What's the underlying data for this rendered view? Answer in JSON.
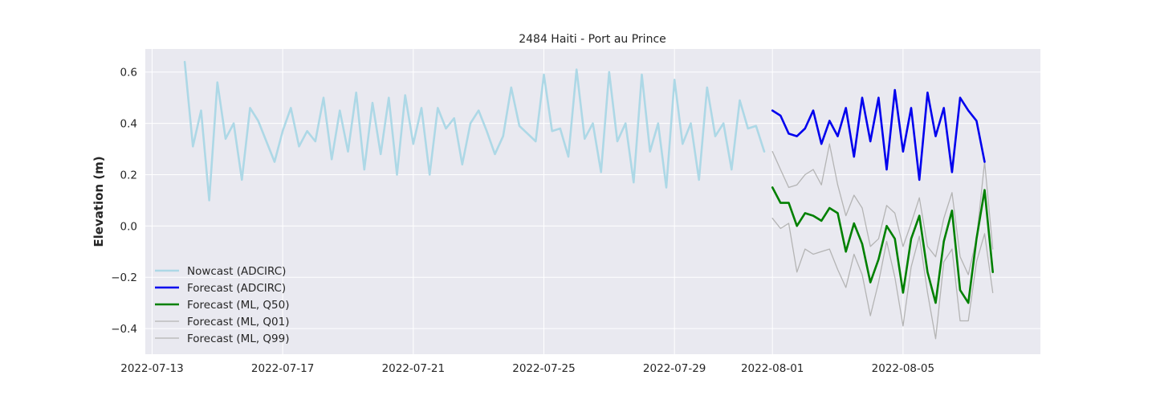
{
  "chart_data": {
    "type": "line",
    "title": "2484 Haiti - Port au Prince",
    "xlabel": "",
    "ylabel": "Elevation (m)",
    "x_type": "date",
    "xlim": [
      "2022-07-12T19:00",
      "2022-08-09T05:00"
    ],
    "ylim": [
      -0.5,
      0.69
    ],
    "xticks": [
      {
        "value": "2022-07-13",
        "label": "2022-07-13"
      },
      {
        "value": "2022-07-17",
        "label": "2022-07-17"
      },
      {
        "value": "2022-07-21",
        "label": "2022-07-21"
      },
      {
        "value": "2022-07-25",
        "label": "2022-07-25"
      },
      {
        "value": "2022-07-29",
        "label": "2022-07-29"
      },
      {
        "value": "2022-08-01",
        "label": "2022-08-01"
      },
      {
        "value": "2022-08-05",
        "label": "2022-08-05"
      }
    ],
    "yticks": [
      {
        "value": 0.6,
        "label": "0.6"
      },
      {
        "value": 0.4,
        "label": "0.4"
      },
      {
        "value": 0.2,
        "label": "0.2"
      },
      {
        "value": 0.0,
        "label": "0.0"
      },
      {
        "value": -0.2,
        "label": "−0.2"
      },
      {
        "value": -0.4,
        "label": "−0.4"
      }
    ],
    "grid": true,
    "legend_position": "lower-left",
    "background": "#e9e9f0",
    "series": [
      {
        "name": "Nowcast (ADCIRC)",
        "color": "#add8e6",
        "width": 2.6,
        "x": [
          "2022-07-14T00:00",
          "2022-07-14T06:00",
          "2022-07-14T12:00",
          "2022-07-14T18:00",
          "2022-07-15T00:00",
          "2022-07-15T06:00",
          "2022-07-15T12:00",
          "2022-07-15T18:00",
          "2022-07-16T00:00",
          "2022-07-16T06:00",
          "2022-07-16T12:00",
          "2022-07-16T18:00",
          "2022-07-17T00:00",
          "2022-07-17T06:00",
          "2022-07-17T12:00",
          "2022-07-17T18:00",
          "2022-07-18T00:00",
          "2022-07-18T06:00",
          "2022-07-18T12:00",
          "2022-07-18T18:00",
          "2022-07-19T00:00",
          "2022-07-19T06:00",
          "2022-07-19T12:00",
          "2022-07-19T18:00",
          "2022-07-20T00:00",
          "2022-07-20T06:00",
          "2022-07-20T12:00",
          "2022-07-20T18:00",
          "2022-07-21T00:00",
          "2022-07-21T06:00",
          "2022-07-21T12:00",
          "2022-07-21T18:00",
          "2022-07-22T00:00",
          "2022-07-22T06:00",
          "2022-07-22T12:00",
          "2022-07-22T18:00",
          "2022-07-23T00:00",
          "2022-07-23T06:00",
          "2022-07-23T12:00",
          "2022-07-23T18:00",
          "2022-07-24T00:00",
          "2022-07-24T06:00",
          "2022-07-24T12:00",
          "2022-07-24T18:00",
          "2022-07-25T00:00",
          "2022-07-25T06:00",
          "2022-07-25T12:00",
          "2022-07-25T18:00",
          "2022-07-26T00:00",
          "2022-07-26T06:00",
          "2022-07-26T12:00",
          "2022-07-26T18:00",
          "2022-07-27T00:00",
          "2022-07-27T06:00",
          "2022-07-27T12:00",
          "2022-07-27T18:00",
          "2022-07-28T00:00",
          "2022-07-28T06:00",
          "2022-07-28T12:00",
          "2022-07-28T18:00",
          "2022-07-29T00:00",
          "2022-07-29T06:00",
          "2022-07-29T12:00",
          "2022-07-29T18:00",
          "2022-07-30T00:00",
          "2022-07-30T06:00",
          "2022-07-30T12:00",
          "2022-07-30T18:00",
          "2022-07-31T00:00",
          "2022-07-31T06:00",
          "2022-07-31T12:00",
          "2022-07-31T18:00"
        ],
        "y": [
          0.64,
          0.31,
          0.45,
          0.1,
          0.56,
          0.34,
          0.4,
          0.18,
          0.46,
          0.41,
          0.33,
          0.25,
          0.37,
          0.46,
          0.31,
          0.37,
          0.33,
          0.5,
          0.26,
          0.45,
          0.29,
          0.52,
          0.22,
          0.48,
          0.28,
          0.5,
          0.2,
          0.51,
          0.32,
          0.46,
          0.2,
          0.46,
          0.38,
          0.42,
          0.24,
          0.4,
          0.45,
          0.37,
          0.28,
          0.35,
          0.54,
          0.39,
          0.36,
          0.33,
          0.59,
          0.37,
          0.38,
          0.27,
          0.61,
          0.34,
          0.4,
          0.21,
          0.6,
          0.33,
          0.4,
          0.17,
          0.59,
          0.29,
          0.4,
          0.15,
          0.57,
          0.32,
          0.4,
          0.18,
          0.54,
          0.35,
          0.4,
          0.22,
          0.49,
          0.38,
          0.39,
          0.29
        ]
      },
      {
        "name": "Forecast (ADCIRC)",
        "color": "#0000ee",
        "width": 2.6,
        "x": [
          "2022-08-01T00:00",
          "2022-08-01T06:00",
          "2022-08-01T12:00",
          "2022-08-01T18:00",
          "2022-08-02T00:00",
          "2022-08-02T06:00",
          "2022-08-02T12:00",
          "2022-08-02T18:00",
          "2022-08-03T00:00",
          "2022-08-03T06:00",
          "2022-08-03T12:00",
          "2022-08-03T18:00",
          "2022-08-04T00:00",
          "2022-08-04T06:00",
          "2022-08-04T12:00",
          "2022-08-04T18:00",
          "2022-08-05T00:00",
          "2022-08-05T06:00",
          "2022-08-05T12:00",
          "2022-08-05T18:00",
          "2022-08-06T00:00",
          "2022-08-06T06:00",
          "2022-08-06T12:00",
          "2022-08-06T18:00",
          "2022-08-07T00:00",
          "2022-08-07T06:00",
          "2022-08-07T12:00",
          "2022-08-07T18:00"
        ],
        "y": [
          0.45,
          0.43,
          0.36,
          0.35,
          0.38,
          0.45,
          0.32,
          0.41,
          0.35,
          0.46,
          0.27,
          0.5,
          0.33,
          0.5,
          0.22,
          0.53,
          0.29,
          0.46,
          0.18,
          0.52,
          0.35,
          0.46,
          0.21,
          0.5,
          0.45,
          0.41,
          0.25,
          null
        ]
      },
      {
        "name": "Forecast (ML, Q50)",
        "color": "#008000",
        "width": 2.6,
        "x": [
          "2022-08-01T00:00",
          "2022-08-01T06:00",
          "2022-08-01T12:00",
          "2022-08-01T18:00",
          "2022-08-02T00:00",
          "2022-08-02T06:00",
          "2022-08-02T12:00",
          "2022-08-02T18:00",
          "2022-08-03T00:00",
          "2022-08-03T06:00",
          "2022-08-03T12:00",
          "2022-08-03T18:00",
          "2022-08-04T00:00",
          "2022-08-04T06:00",
          "2022-08-04T12:00",
          "2022-08-04T18:00",
          "2022-08-05T00:00",
          "2022-08-05T06:00",
          "2022-08-05T12:00",
          "2022-08-05T18:00",
          "2022-08-06T00:00",
          "2022-08-06T06:00",
          "2022-08-06T12:00",
          "2022-08-06T18:00",
          "2022-08-07T00:00",
          "2022-08-07T06:00",
          "2022-08-07T12:00",
          "2022-08-07T18:00"
        ],
        "y": [
          0.15,
          0.09,
          0.09,
          0.0,
          0.05,
          0.04,
          0.02,
          0.07,
          0.05,
          -0.1,
          0.01,
          -0.07,
          -0.22,
          -0.13,
          0.0,
          -0.05,
          -0.26,
          -0.05,
          0.04,
          -0.18,
          -0.3,
          -0.06,
          0.06,
          -0.25,
          -0.3,
          -0.05,
          0.14,
          -0.18
        ]
      },
      {
        "name": "Forecast (ML, Q01)",
        "color": "#b4b4b4",
        "width": 1.3,
        "x": [
          "2022-08-01T00:00",
          "2022-08-01T06:00",
          "2022-08-01T12:00",
          "2022-08-01T18:00",
          "2022-08-02T00:00",
          "2022-08-02T06:00",
          "2022-08-02T12:00",
          "2022-08-02T18:00",
          "2022-08-03T00:00",
          "2022-08-03T06:00",
          "2022-08-03T12:00",
          "2022-08-03T18:00",
          "2022-08-04T00:00",
          "2022-08-04T06:00",
          "2022-08-04T12:00",
          "2022-08-04T18:00",
          "2022-08-05T00:00",
          "2022-08-05T06:00",
          "2022-08-05T12:00",
          "2022-08-05T18:00",
          "2022-08-06T00:00",
          "2022-08-06T06:00",
          "2022-08-06T12:00",
          "2022-08-06T18:00",
          "2022-08-07T00:00",
          "2022-08-07T06:00",
          "2022-08-07T12:00",
          "2022-08-07T18:00"
        ],
        "y": [
          0.03,
          -0.01,
          0.01,
          -0.18,
          -0.09,
          -0.11,
          -0.1,
          -0.09,
          -0.17,
          -0.24,
          -0.11,
          -0.19,
          -0.35,
          -0.22,
          -0.06,
          -0.2,
          -0.39,
          -0.16,
          -0.04,
          -0.26,
          -0.44,
          -0.14,
          -0.09,
          -0.37,
          -0.37,
          -0.14,
          -0.03,
          -0.26
        ]
      },
      {
        "name": "Forecast (ML, Q99)",
        "color": "#b4b4b4",
        "width": 1.3,
        "x": [
          "2022-08-01T00:00",
          "2022-08-01T06:00",
          "2022-08-01T12:00",
          "2022-08-01T18:00",
          "2022-08-02T00:00",
          "2022-08-02T06:00",
          "2022-08-02T12:00",
          "2022-08-02T18:00",
          "2022-08-03T00:00",
          "2022-08-03T06:00",
          "2022-08-03T12:00",
          "2022-08-03T18:00",
          "2022-08-04T00:00",
          "2022-08-04T06:00",
          "2022-08-04T12:00",
          "2022-08-04T18:00",
          "2022-08-05T00:00",
          "2022-08-05T06:00",
          "2022-08-05T12:00",
          "2022-08-05T18:00",
          "2022-08-06T00:00",
          "2022-08-06T06:00",
          "2022-08-06T12:00",
          "2022-08-06T18:00",
          "2022-08-07T00:00",
          "2022-08-07T06:00",
          "2022-08-07T12:00",
          "2022-08-07T18:00"
        ],
        "y": [
          0.29,
          0.22,
          0.15,
          0.16,
          0.2,
          0.22,
          0.16,
          0.32,
          0.16,
          0.04,
          0.12,
          0.07,
          -0.08,
          -0.05,
          0.08,
          0.05,
          -0.08,
          0.01,
          0.11,
          -0.08,
          -0.12,
          0.03,
          0.13,
          -0.12,
          -0.19,
          -0.05,
          0.25,
          -0.09
        ]
      }
    ]
  }
}
